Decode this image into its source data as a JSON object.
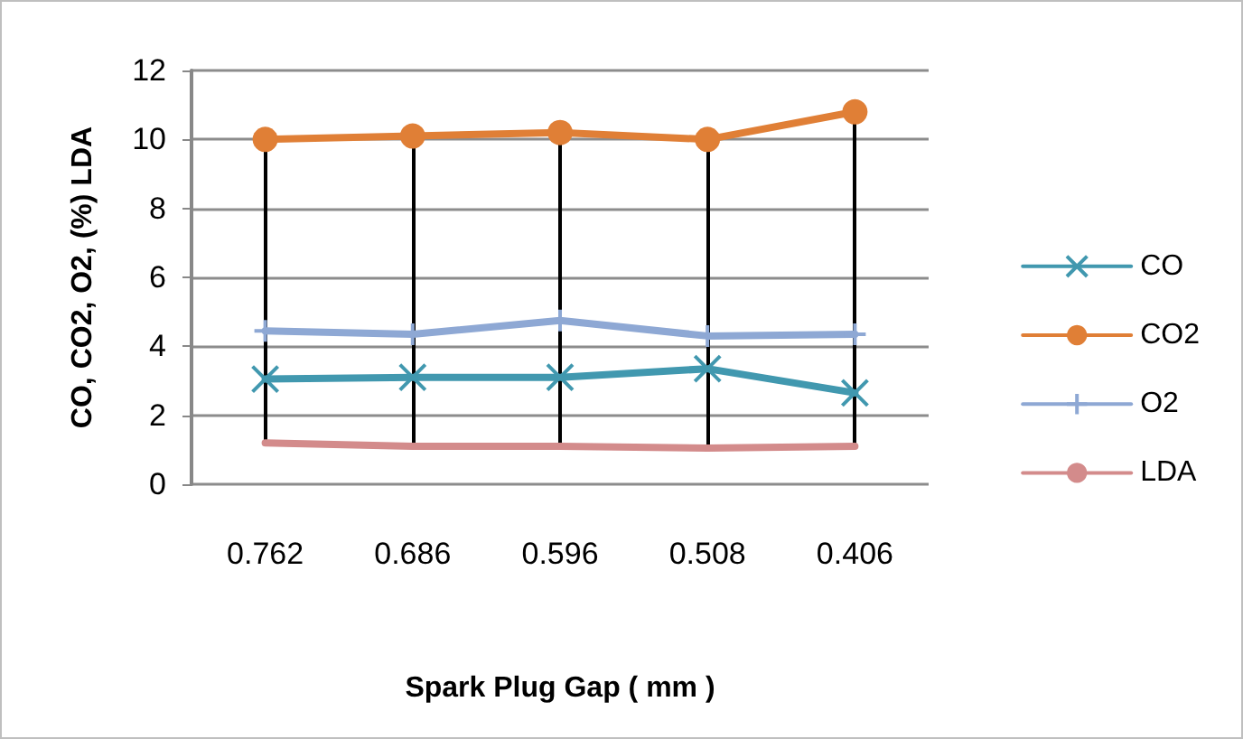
{
  "chart_data": {
    "type": "line",
    "xlabel": "Spark Plug Gap ( mm )",
    "ylabel": "CO, CO2, O2, (%) LDA",
    "categories": [
      "0.762",
      "0.686",
      "0.596",
      "0.508",
      "0.406"
    ],
    "series": [
      {
        "name": "CO",
        "color": "#4198af",
        "marker": "cross",
        "values": [
          3.05,
          3.1,
          3.1,
          3.35,
          2.65
        ]
      },
      {
        "name": "CO2",
        "color": "#e07f36",
        "marker": "circle",
        "values": [
          10.0,
          10.1,
          10.2,
          10.0,
          10.8
        ]
      },
      {
        "name": "O2",
        "color": "#8ea8d4",
        "marker": "plus",
        "values": [
          4.45,
          4.35,
          4.75,
          4.3,
          4.35
        ]
      },
      {
        "name": "LDA",
        "color": "#d38b8b",
        "marker": "none",
        "values": [
          1.2,
          1.1,
          1.1,
          1.05,
          1.1
        ]
      }
    ],
    "ylim": [
      0,
      12
    ],
    "yticks": [
      0,
      2,
      4,
      6,
      8,
      10,
      12
    ],
    "grid": "y",
    "legend": "right",
    "ref_lines": [
      {
        "axis": "x",
        "value": "0.762",
        "color": "#000000"
      },
      {
        "axis": "x",
        "value": "0.686",
        "color": "#000000"
      },
      {
        "axis": "x",
        "value": "0.596",
        "color": "#000000"
      },
      {
        "axis": "x",
        "value": "0.508",
        "color": "#000000"
      },
      {
        "axis": "x",
        "value": "0.406",
        "color": "#000000"
      }
    ]
  }
}
